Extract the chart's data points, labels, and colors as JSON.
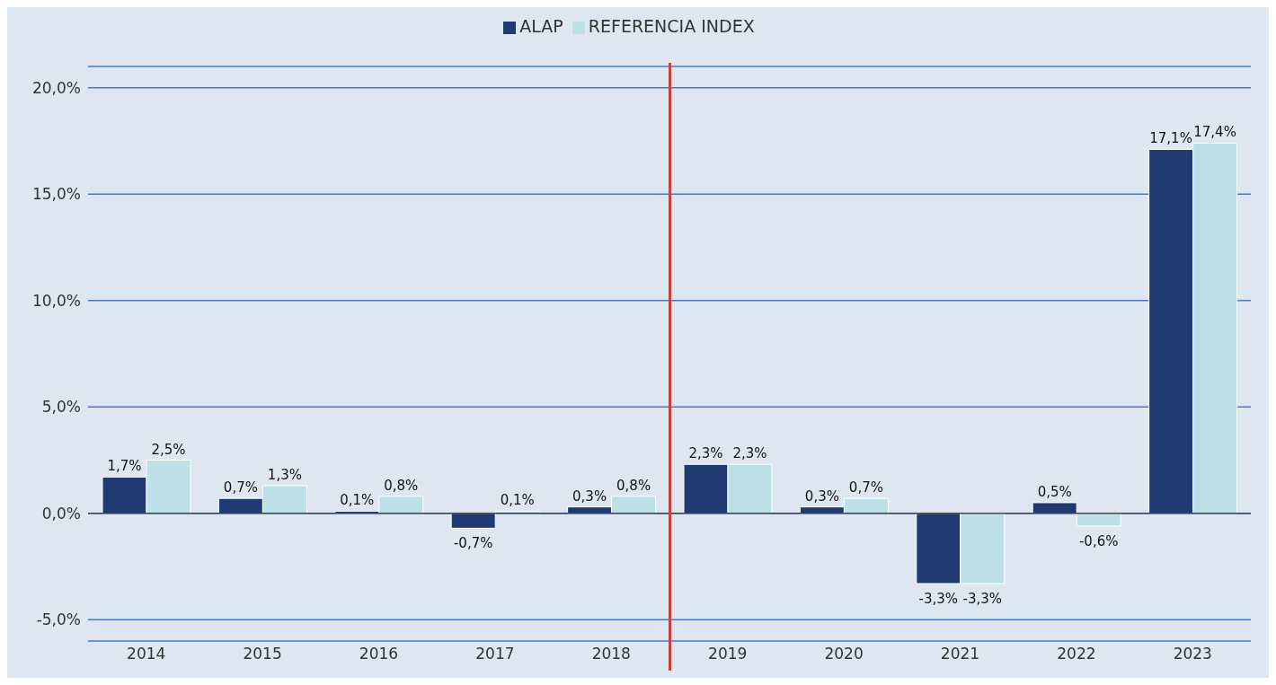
{
  "chart_data": {
    "type": "bar",
    "categories": [
      "2014",
      "2015",
      "2016",
      "2017",
      "2018",
      "2019",
      "2020",
      "2021",
      "2022",
      "2023"
    ],
    "series": [
      {
        "name": "ALAP",
        "color": "#1f3a70",
        "values": [
          1.7,
          0.7,
          0.1,
          -0.7,
          0.3,
          2.3,
          0.3,
          -3.3,
          0.5,
          17.1
        ],
        "value_labels": [
          "1,7%",
          "0,7%",
          "0,1%",
          "-0,7%",
          "0,3%",
          "2,3%",
          "0,3%",
          "-3,3%",
          "0,5%",
          "17,1%"
        ]
      },
      {
        "name": "REFERENCIA INDEX",
        "color": "#bde0e8",
        "values": [
          2.5,
          1.3,
          0.8,
          0.1,
          0.8,
          2.3,
          0.7,
          -3.3,
          -0.6,
          17.4
        ],
        "value_labels": [
          "2,5%",
          "1,3%",
          "0,8%",
          "0,1%",
          "0,8%",
          "2,3%",
          "0,7%",
          "-3,3%",
          "-0,6%",
          "17,4%"
        ]
      }
    ],
    "ylim": [
      -6,
      21
    ],
    "yticks": [
      {
        "value": -5,
        "label": "-5,0%"
      },
      {
        "value": 0,
        "label": "0,0%"
      },
      {
        "value": 5,
        "label": "5,0%"
      },
      {
        "value": 10,
        "label": "10,0%"
      },
      {
        "value": 15,
        "label": "15,0%"
      },
      {
        "value": 20,
        "label": "20,0%"
      }
    ],
    "grid": "y",
    "legend": "top"
  }
}
